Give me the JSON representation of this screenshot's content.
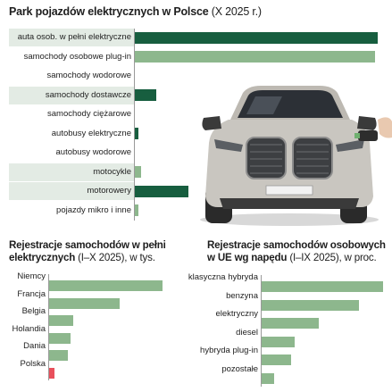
{
  "chart_data": [
    {
      "type": "bar",
      "orientation": "horizontal",
      "title": "Park pojazdów elektrycznych w Polsce",
      "subtitle": "(X 2025 r.)",
      "categories": [
        "auta osob. w pełni elektryczne",
        "samochody osobowe plug-in",
        "samochody wodorowe",
        "samochody dostawcze",
        "samochody ciężarowe",
        "autobusy elektryczne",
        "autobusy wodorowe",
        "motocykle",
        "motorowery",
        "pojazdy mikro i inne"
      ],
      "values": [
        100,
        99,
        0,
        9,
        0,
        1.5,
        0,
        2.5,
        22,
        1.5
      ],
      "highlight": [
        true,
        false,
        false,
        true,
        false,
        false,
        false,
        true,
        true,
        false
      ],
      "colors": [
        "#175e3f",
        "#8db78d",
        "#8db78d",
        "#175e3f",
        "#8db78d",
        "#175e3f",
        "#8db78d",
        "#8db78d",
        "#175e3f",
        "#8db78d"
      ],
      "xlim": [
        0,
        100
      ]
    },
    {
      "type": "bar",
      "orientation": "horizontal",
      "title": "Rejestracje samochodów w pełni elektrycznych",
      "subtitle": "(I–X 2025), w tys.",
      "categories": [
        "Niemcy",
        "Francja",
        "Belgia",
        "Holandia",
        "Dania",
        "Polska"
      ],
      "values": [
        450,
        280,
        95,
        85,
        75,
        20
      ],
      "colors": [
        "#8db78d",
        "#8db78d",
        "#8db78d",
        "#8db78d",
        "#8db78d",
        "#e8505c"
      ],
      "xlim": [
        0,
        460
      ]
    },
    {
      "type": "bar",
      "orientation": "horizontal",
      "title": "Rejestracje samochodów osobowych w UE wg napędu",
      "subtitle": "(I–IX 2025), w proc.",
      "categories": [
        "klasyczna hybryda",
        "benzyna",
        "elektryczny",
        "diesel",
        "hybryda plug-in",
        "pozostałe"
      ],
      "values": [
        35,
        28,
        16.5,
        9.5,
        8.5,
        3.5
      ],
      "colors": [
        "#8db78d",
        "#8db78d",
        "#8db78d",
        "#8db78d",
        "#8db78d",
        "#8db78d"
      ],
      "xlim": [
        0,
        35
      ]
    }
  ],
  "icons": [
    "electric-car-illustration",
    "charging-plug-icon"
  ]
}
